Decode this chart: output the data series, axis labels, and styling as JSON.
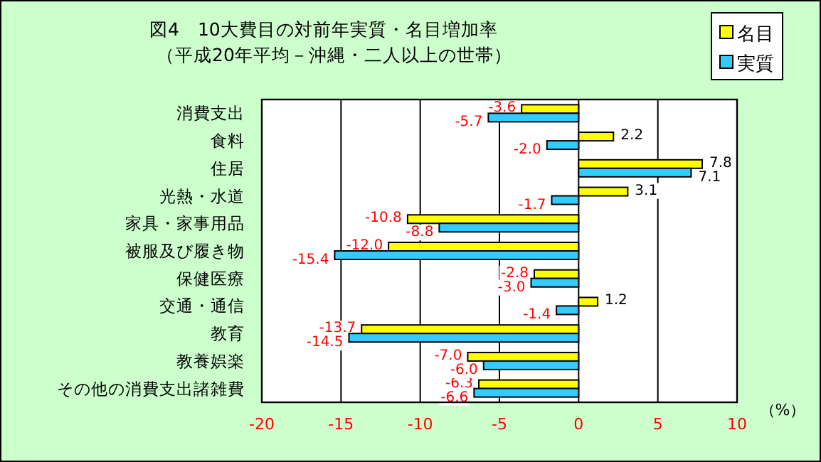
{
  "chart_data": {
    "type": "bar",
    "orientation": "horizontal",
    "title": "図4　10大費目の対前年実質・名目増加率",
    "subtitle": "（平成20年平均－沖縄・二人以上の世帯）",
    "xlabel": "（%）",
    "categories": [
      "消費支出",
      "食料",
      "住居",
      "光熱・水道",
      "家具・家事用品",
      "被服及び履き物",
      "保健医療",
      "交通・通信",
      "教育",
      "教養娯楽",
      "その他の消費支出諸雑費"
    ],
    "series": [
      {
        "name": "名目",
        "color": "#ffff00",
        "values": [
          -3.6,
          2.2,
          7.8,
          3.1,
          -10.8,
          -12.0,
          -2.8,
          1.2,
          -13.7,
          -7.0,
          -6.3
        ],
        "value_labels": [
          "-3.6",
          "2.2",
          "7.8",
          "3.1",
          "-10.8",
          "-12.0",
          "-2.8",
          "1.2",
          "-13.7",
          "-7.0",
          "-6.3"
        ]
      },
      {
        "name": "実質",
        "color": "#33ccff",
        "values": [
          -5.7,
          -2.0,
          7.1,
          -1.7,
          -8.8,
          -15.4,
          -3.0,
          -1.4,
          -14.5,
          -6.0,
          -6.6
        ],
        "value_labels": [
          "-5.7",
          "-2.0",
          "7.1",
          "-1.7",
          "-8.8",
          "-15.4",
          "-3.0",
          "-1.4",
          "-14.5",
          "-6.0",
          "-6.6"
        ]
      }
    ],
    "xlim": [
      -20,
      10
    ],
    "xticks": [
      -20,
      -15,
      -10,
      -5,
      0,
      5,
      10
    ],
    "grid": "x",
    "legend": "top right"
  }
}
